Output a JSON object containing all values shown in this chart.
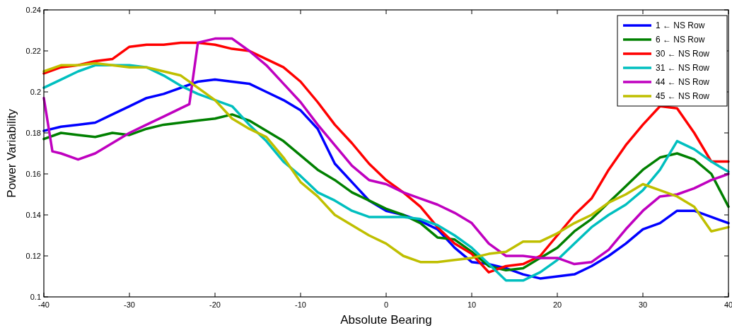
{
  "chart_data": {
    "type": "line",
    "xlabel": "Absolute Bearing",
    "ylabel": "Power Variability",
    "x": [
      -40,
      -38,
      -36,
      -34,
      -32,
      -30,
      -28,
      -26,
      -24,
      -22,
      -20,
      -18,
      -16,
      -14,
      -12,
      -10,
      -8,
      -6,
      -4,
      -2,
      0,
      2,
      4,
      6,
      8,
      10,
      12,
      14,
      16,
      18,
      20,
      22,
      24,
      26,
      28,
      30,
      32,
      34,
      36,
      38,
      40
    ],
    "xlim": [
      -40,
      40
    ],
    "xticks": [
      -40,
      -30,
      -20,
      -10,
      0,
      10,
      20,
      30,
      40
    ],
    "ylim": [
      0.1,
      0.24
    ],
    "yticks": [
      0.1,
      0.12,
      0.14,
      0.16,
      0.18,
      0.2,
      0.22,
      0.24
    ],
    "grid": false,
    "legend": "top right",
    "line_style": "solid",
    "marker": "none",
    "series": [
      {
        "name": "1 ← NS Row",
        "color": "#0000ff",
        "values": [
          0.181,
          0.183,
          0.184,
          0.185,
          0.189,
          0.193,
          0.197,
          0.199,
          0.202,
          0.205,
          0.206,
          0.205,
          0.204,
          0.2,
          0.196,
          0.191,
          0.182,
          0.165,
          0.156,
          0.147,
          0.142,
          0.14,
          0.137,
          0.133,
          0.124,
          0.117,
          0.116,
          0.114,
          0.111,
          0.109,
          0.11,
          0.111,
          0.115,
          0.12,
          0.126,
          0.133,
          0.136,
          0.142,
          0.142,
          0.139,
          0.136
        ]
      },
      {
        "name": "6 ← NS Row",
        "color": "#008000",
        "values": [
          0.177,
          0.18,
          0.179,
          0.178,
          0.18,
          0.179,
          0.182,
          0.184,
          0.185,
          0.186,
          0.187,
          0.189,
          0.186,
          0.181,
          0.176,
          0.169,
          0.162,
          0.157,
          0.151,
          0.147,
          0.143,
          0.14,
          0.136,
          0.129,
          0.128,
          0.122,
          0.115,
          0.113,
          0.114,
          0.119,
          0.124,
          0.132,
          0.138,
          0.146,
          0.154,
          0.162,
          0.168,
          0.17,
          0.167,
          0.16,
          0.144
        ]
      },
      {
        "name": "30 ← NS Row",
        "color": "#ff0000",
        "values": [
          0.209,
          0.212,
          0.213,
          0.215,
          0.216,
          0.222,
          0.223,
          0.223,
          0.224,
          0.224,
          0.223,
          0.221,
          0.22,
          0.216,
          0.212,
          0.205,
          0.195,
          0.184,
          0.175,
          0.165,
          0.157,
          0.151,
          0.144,
          0.134,
          0.126,
          0.121,
          0.112,
          0.115,
          0.116,
          0.12,
          0.13,
          0.14,
          0.148,
          0.162,
          0.174,
          0.184,
          0.193,
          0.192,
          0.18,
          0.166,
          0.166
        ]
      },
      {
        "name": "31 ← NS Row",
        "color": "#00bfbf",
        "values": [
          0.202,
          0.206,
          0.21,
          0.213,
          0.213,
          0.213,
          0.212,
          0.208,
          0.203,
          0.199,
          0.196,
          0.193,
          0.184,
          0.176,
          0.166,
          0.159,
          0.151,
          0.147,
          0.142,
          0.139,
          0.139,
          0.139,
          0.138,
          0.135,
          0.13,
          0.124,
          0.116,
          0.108,
          0.108,
          0.112,
          0.118,
          0.126,
          0.134,
          0.14,
          0.145,
          0.152,
          0.162,
          0.176,
          0.172,
          0.166,
          0.161
        ]
      },
      {
        "name": "44 ← NS Row",
        "color": "#bf00bf",
        "x": [
          -40,
          -39,
          -38,
          -36,
          -34,
          -32,
          -30,
          -28,
          -26,
          -24,
          -23,
          -22,
          -20,
          -18,
          -16,
          -14,
          -12,
          -10,
          -8,
          -6,
          -4,
          -2,
          0,
          2,
          4,
          6,
          8,
          10,
          12,
          14,
          16,
          18,
          20,
          22,
          24,
          26,
          28,
          30,
          32,
          34,
          36,
          38,
          40
        ],
        "values": [
          0.197,
          0.171,
          0.17,
          0.167,
          0.17,
          0.175,
          0.18,
          0.184,
          0.188,
          0.192,
          0.194,
          0.224,
          0.226,
          0.226,
          0.22,
          0.213,
          0.204,
          0.195,
          0.184,
          0.174,
          0.164,
          0.157,
          0.155,
          0.151,
          0.148,
          0.145,
          0.141,
          0.136,
          0.126,
          0.12,
          0.12,
          0.119,
          0.119,
          0.116,
          0.117,
          0.123,
          0.133,
          0.142,
          0.149,
          0.15,
          0.153,
          0.157,
          0.16
        ]
      },
      {
        "name": "45 ← NS Row",
        "color": "#bfbf00",
        "values": [
          0.21,
          0.213,
          0.213,
          0.214,
          0.213,
          0.212,
          0.212,
          0.21,
          0.208,
          0.202,
          0.196,
          0.187,
          0.182,
          0.178,
          0.168,
          0.156,
          0.149,
          0.14,
          0.135,
          0.13,
          0.126,
          0.12,
          0.117,
          0.117,
          0.118,
          0.119,
          0.121,
          0.122,
          0.127,
          0.127,
          0.131,
          0.136,
          0.14,
          0.146,
          0.15,
          0.155,
          0.152,
          0.149,
          0.144,
          0.132,
          0.134
        ]
      }
    ]
  }
}
